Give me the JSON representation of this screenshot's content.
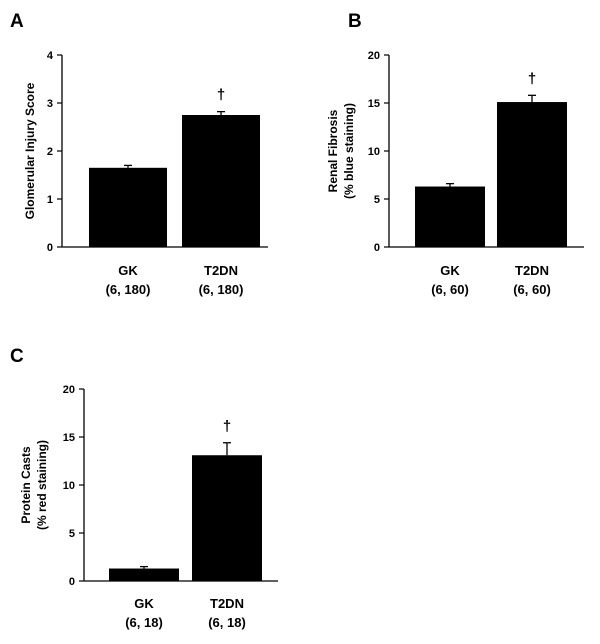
{
  "chart_data": [
    {
      "type": "bar",
      "panel_label": "A",
      "ylabel_lines": [
        "Glomerular Injury Score"
      ],
      "ylim": [
        0,
        4
      ],
      "yticks": [
        0,
        1,
        2,
        3,
        4
      ],
      "categories": [
        {
          "line1": "GK",
          "line2": "(6, 180)"
        },
        {
          "line1": "T2DN",
          "line2": "(6, 180)"
        }
      ],
      "values": [
        1.65,
        2.75
      ],
      "errors": [
        0.05,
        0.07
      ],
      "annotations": [
        "",
        "†"
      ]
    },
    {
      "type": "bar",
      "panel_label": "B",
      "ylabel_lines": [
        "Renal Fibrosis",
        "(% blue staining)"
      ],
      "ylim": [
        0,
        20
      ],
      "yticks": [
        0,
        5,
        10,
        15,
        20
      ],
      "categories": [
        {
          "line1": "GK",
          "line2": "(6, 60)"
        },
        {
          "line1": "T2DN",
          "line2": "(6, 60)"
        }
      ],
      "values": [
        6.3,
        15.1
      ],
      "errors": [
        0.3,
        0.7
      ],
      "annotations": [
        "",
        "†"
      ]
    },
    {
      "type": "bar",
      "panel_label": "C",
      "ylabel_lines": [
        "Protein Casts",
        "(% red staining)"
      ],
      "ylim": [
        0,
        20
      ],
      "yticks": [
        0,
        5,
        10,
        15,
        20
      ],
      "categories": [
        {
          "line1": "GK",
          "line2": "(6, 18)"
        },
        {
          "line1": "T2DN",
          "line2": "(6, 18)"
        }
      ],
      "values": [
        1.3,
        13.1
      ],
      "errors": [
        0.2,
        1.3
      ],
      "annotations": [
        "",
        "†"
      ]
    }
  ],
  "colors": {
    "bar": "#000000",
    "axis": "#000000",
    "background": "#ffffff"
  }
}
